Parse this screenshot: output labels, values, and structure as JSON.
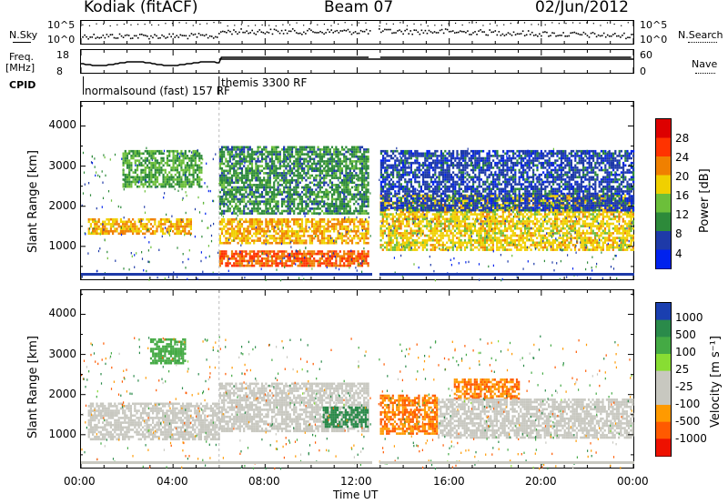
{
  "header": {
    "station": "Kodiak (fitACF)",
    "beam": "Beam 07",
    "date": "02/Jun/2012"
  },
  "status_panels": {
    "nsky_label": "N.Sky",
    "nsky_ticks": [
      "10^5",
      "10^0"
    ],
    "nsearch_label": "N.Search",
    "nsearch_ticks": [
      "10^5",
      "10^0"
    ],
    "freq_label": "Freq.",
    "freq_unit": "[MHz]",
    "freq_ticks": [
      "18",
      "8"
    ],
    "nave_label": "Nave",
    "nave_ticks": [
      "60",
      "0"
    ],
    "cpid_label": "CPID",
    "cpid_modes": [
      {
        "name": "normalsound (fast) 157 RF",
        "start_hour": 0
      },
      {
        "name": "themis 3300 RF",
        "start_hour": 6
      }
    ]
  },
  "chart_data": [
    {
      "type": "heatmap",
      "name": "power",
      "ylabel": "Slant Range [km]",
      "ylim": [
        180,
        4600
      ],
      "yticks": [
        1000,
        2000,
        3000,
        4000
      ],
      "xlim_hours": [
        0,
        24
      ],
      "colorbar_label": "Power [dB]",
      "colorbar_ticks": [
        "4",
        "8",
        "12",
        "16",
        "20",
        "24",
        "28"
      ],
      "colorbar_colors": [
        "#0022ee",
        "#1e3aa8",
        "#2d8a3a",
        "#6cbf3a",
        "#f0d000",
        "#f08000",
        "#ff3300",
        "#dd0000"
      ],
      "data_gap_hours": [
        12.6,
        12.9
      ],
      "bands": [
        {
          "t0": 0.3,
          "t1": 4.8,
          "r0": 1300,
          "r1": 1700,
          "level": 20
        },
        {
          "t0": 1.8,
          "t1": 5.2,
          "r0": 2500,
          "r1": 3400,
          "level": 12
        },
        {
          "t0": 6.0,
          "t1": 12.5,
          "r0": 500,
          "r1": 900,
          "level": 24
        },
        {
          "t0": 6.0,
          "t1": 12.5,
          "r0": 1100,
          "r1": 1700,
          "level": 20
        },
        {
          "t0": 6.0,
          "t1": 12.5,
          "r0": 1800,
          "r1": 3500,
          "level": 10
        },
        {
          "t0": 12.9,
          "t1": 24.0,
          "r0": 900,
          "r1": 2300,
          "level": 18
        },
        {
          "t0": 13.0,
          "t1": 24.0,
          "r0": 1900,
          "r1": 3400,
          "level": 6
        }
      ]
    },
    {
      "type": "heatmap",
      "name": "velocity",
      "ylabel": "Slant Range [km]",
      "ylim": [
        180,
        4600
      ],
      "yticks": [
        1000,
        2000,
        3000,
        4000
      ],
      "xlim_hours": [
        0,
        24
      ],
      "colorbar_label": "Velocity [m s⁻¹]",
      "colorbar_ticks": [
        "1000",
        "500",
        "100",
        "25",
        "-25",
        "-100",
        "-500",
        "-1000"
      ],
      "colorbar_colors": [
        "#1a3fb0",
        "#2a8a4a",
        "#44aa44",
        "#88dd33",
        "#c8c8c0",
        "#c8c8c0",
        "#ff9a00",
        "#ff5a00",
        "#ee1100"
      ],
      "data_gap_hours": [
        12.6,
        12.9
      ],
      "bands": [
        {
          "t0": 0.3,
          "t1": 6.0,
          "r0": 900,
          "r1": 1800,
          "level": 0
        },
        {
          "t0": 3.0,
          "t1": 4.5,
          "r0": 2800,
          "r1": 3400,
          "level": 100
        },
        {
          "t0": 6.0,
          "t1": 12.5,
          "r0": 1100,
          "r1": 2300,
          "level": 0
        },
        {
          "t0": 10.5,
          "t1": 12.5,
          "r0": 1200,
          "r1": 1700,
          "level": 500
        },
        {
          "t0": 12.9,
          "t1": 15.5,
          "r0": 1000,
          "r1": 2000,
          "level": -300
        },
        {
          "t0": 16.2,
          "t1": 19.0,
          "r0": 1900,
          "r1": 2400,
          "level": -300
        },
        {
          "t0": 15.5,
          "t1": 24.0,
          "r0": 900,
          "r1": 1900,
          "level": 0
        }
      ]
    }
  ],
  "x_axis": {
    "ticks": [
      "00:00",
      "04:00",
      "08:00",
      "12:00",
      "16:00",
      "20:00",
      "00:00"
    ],
    "label": "Time UT"
  }
}
